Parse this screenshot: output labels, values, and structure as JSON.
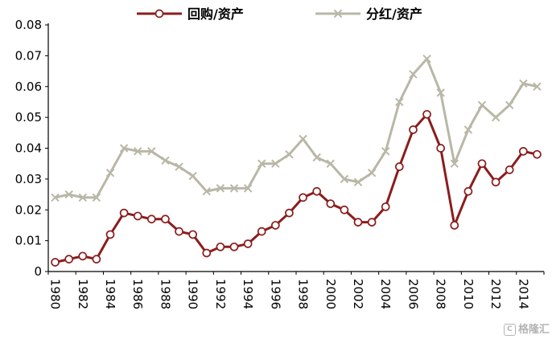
{
  "background": "#ffffff",
  "watermark": {
    "text": "格隆汇"
  },
  "chart_data": {
    "type": "line",
    "title": "",
    "xlabel": "",
    "ylabel": "",
    "legend_position": "top",
    "grid": false,
    "axis_color": "#000000",
    "ylim": [
      0,
      0.08
    ],
    "yticks": [
      0,
      0.01,
      0.02,
      0.03,
      0.04,
      0.05,
      0.06,
      0.07,
      0.08
    ],
    "ytick_labels": [
      "0",
      "0.01",
      "0.02",
      "0.03",
      "0.04",
      "0.05",
      "0.06",
      "0.07",
      "0.08"
    ],
    "x": [
      1980,
      1981,
      1982,
      1983,
      1984,
      1985,
      1986,
      1987,
      1988,
      1989,
      1990,
      1991,
      1992,
      1993,
      1994,
      1995,
      1996,
      1997,
      1998,
      1999,
      2000,
      2001,
      2002,
      2003,
      2004,
      2005,
      2006,
      2007,
      2008,
      2009,
      2010,
      2011,
      2012,
      2013,
      2014,
      2015
    ],
    "xtick_labels": [
      "1980",
      "1982",
      "1984",
      "1986",
      "1988",
      "1990",
      "1992",
      "1994",
      "1996",
      "1998",
      "2000",
      "2002",
      "2004",
      "2006",
      "2008",
      "2010",
      "2012",
      "2014"
    ],
    "series": [
      {
        "id": "repurchase-assets",
        "name": "回购/资产",
        "color": "#8b1d1d",
        "marker": "circle",
        "line_width": 3,
        "values": [
          0.003,
          0.004,
          0.005,
          0.004,
          0.012,
          0.019,
          0.018,
          0.017,
          0.017,
          0.013,
          0.012,
          0.006,
          0.008,
          0.008,
          0.009,
          0.013,
          0.015,
          0.019,
          0.024,
          0.026,
          0.022,
          0.02,
          0.016,
          0.016,
          0.021,
          0.034,
          0.046,
          0.051,
          0.04,
          0.015,
          0.026,
          0.035,
          0.029,
          0.033,
          0.039,
          0.038
        ]
      },
      {
        "id": "dividend-assets",
        "name": "分红/资产",
        "color": "#b9b7a6",
        "marker": "x",
        "line_width": 3,
        "values": [
          0.024,
          0.025,
          0.024,
          0.024,
          0.032,
          0.04,
          0.039,
          0.039,
          0.036,
          0.034,
          0.031,
          0.026,
          0.027,
          0.027,
          0.027,
          0.035,
          0.035,
          0.038,
          0.043,
          0.037,
          0.035,
          0.03,
          0.029,
          0.032,
          0.039,
          0.055,
          0.064,
          0.069,
          0.058,
          0.035,
          0.046,
          0.054,
          0.05,
          0.054,
          0.061,
          0.06
        ]
      }
    ]
  }
}
